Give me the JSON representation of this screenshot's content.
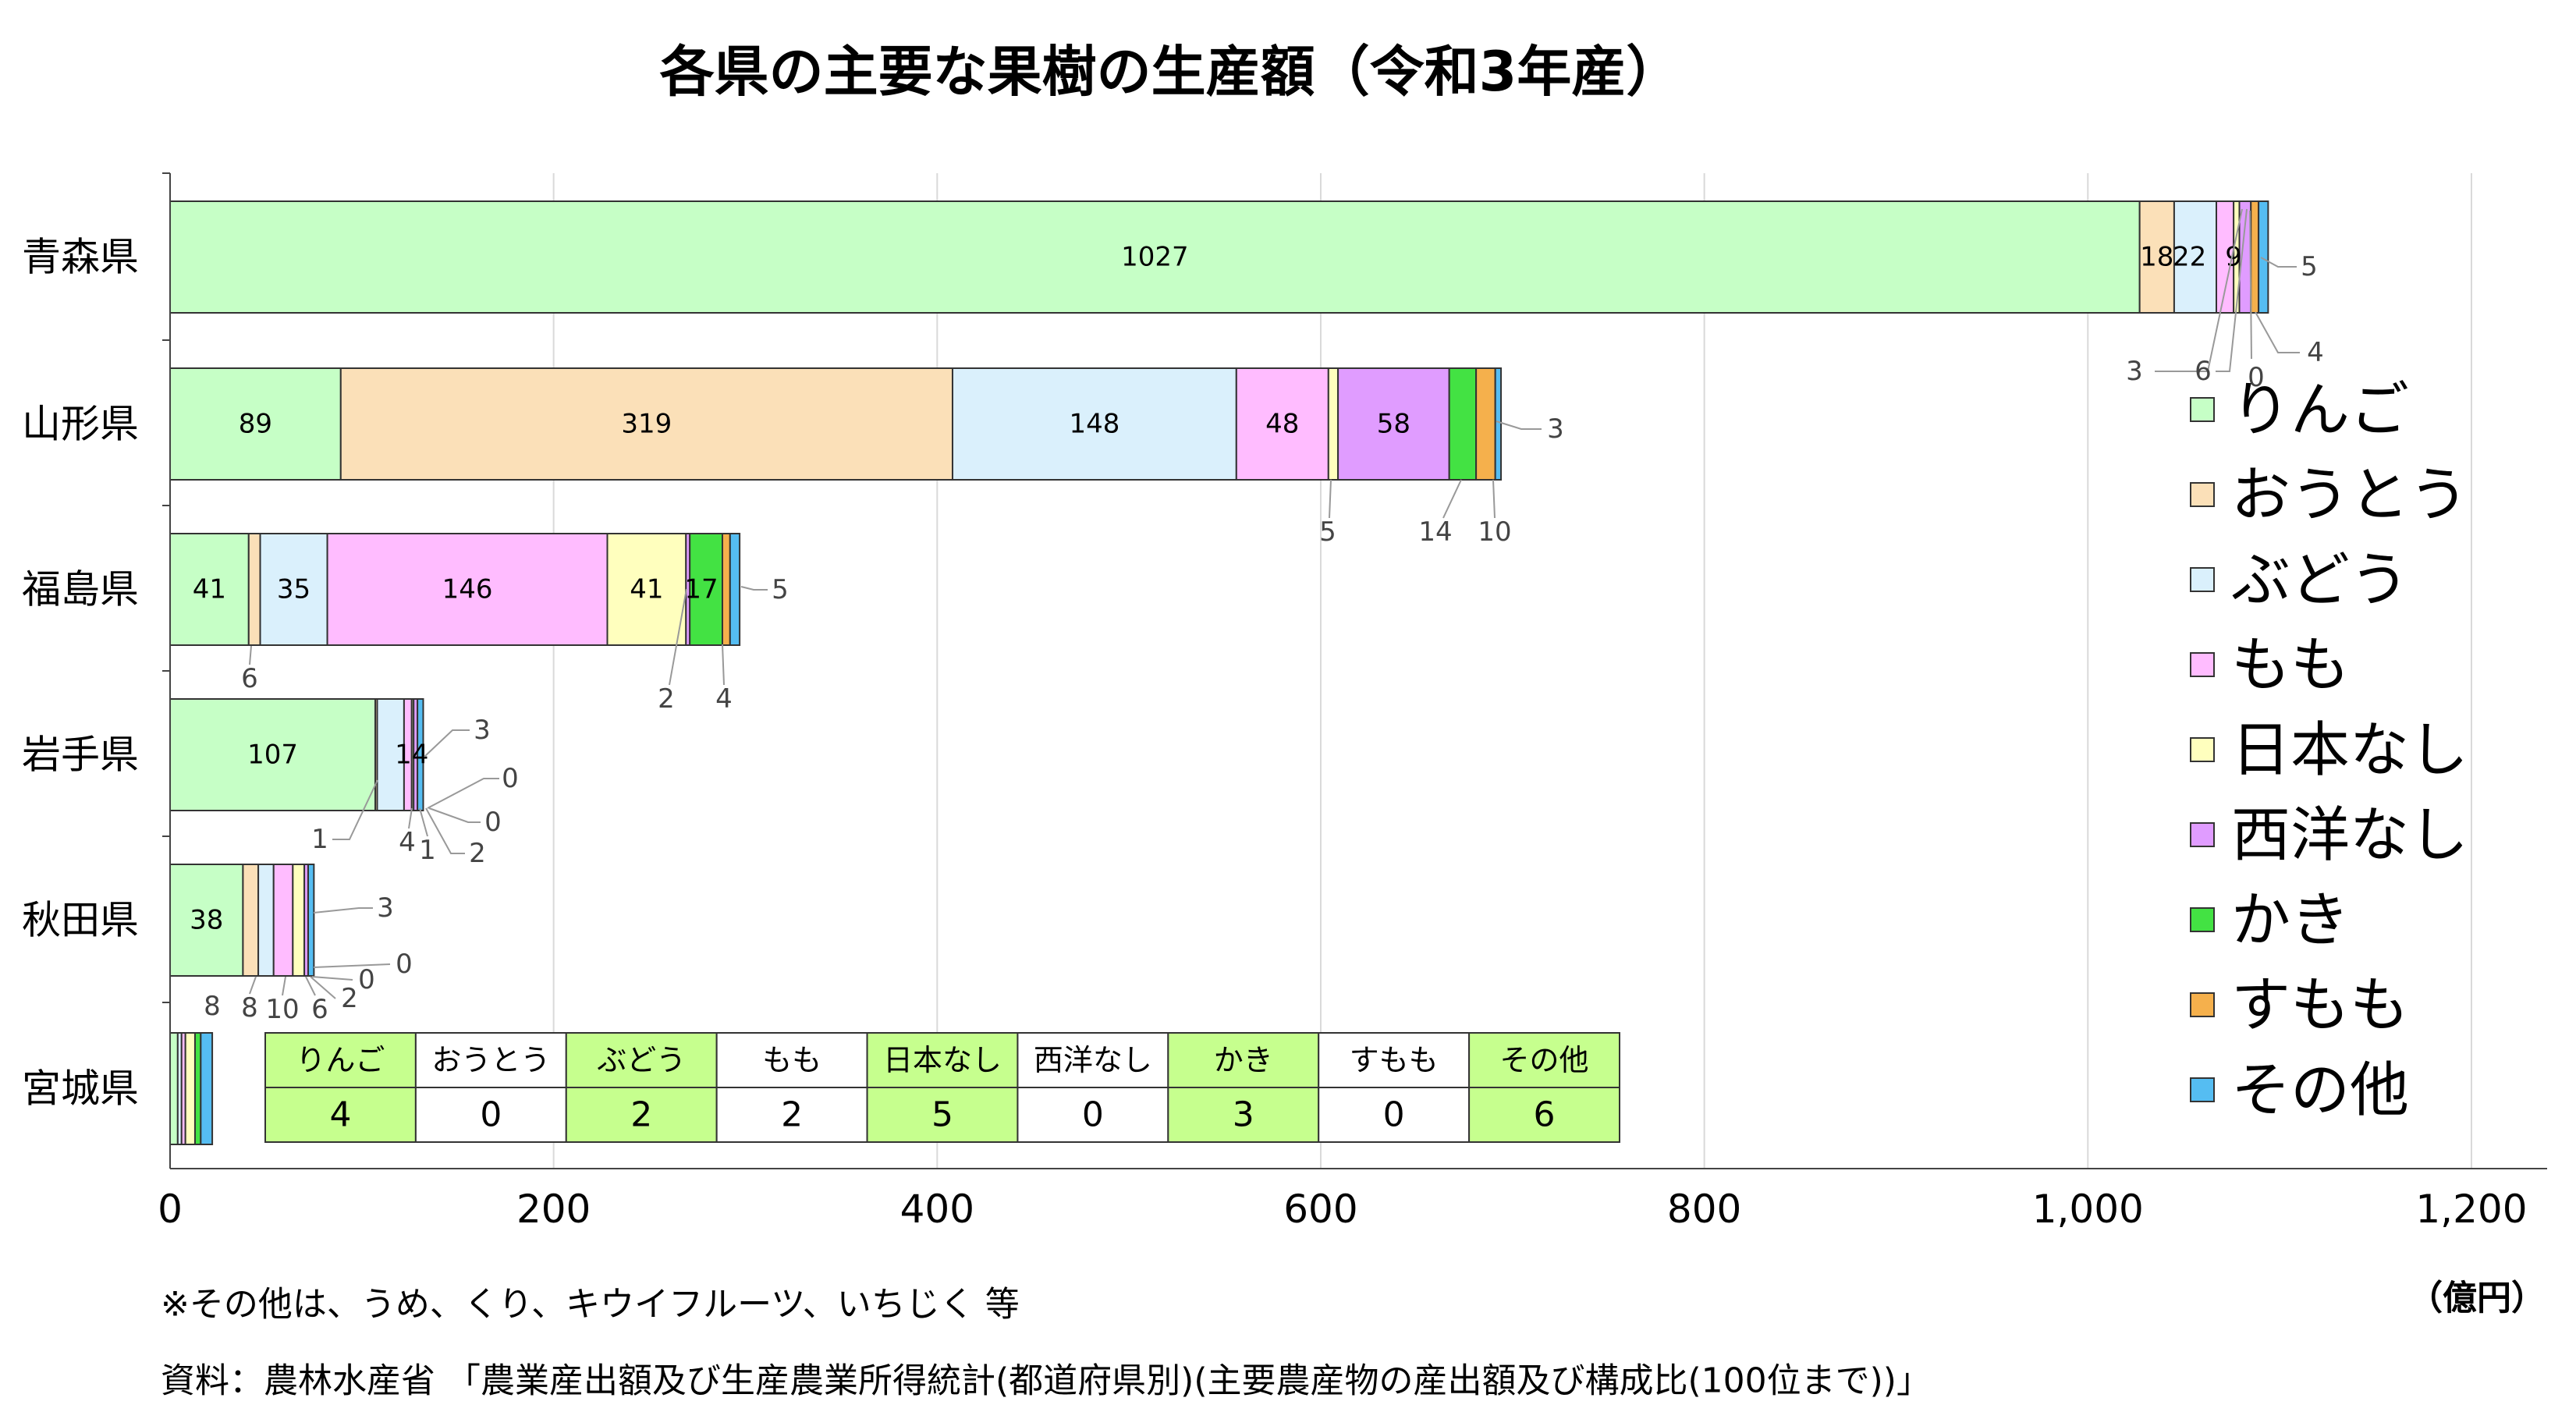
{
  "chart_data": {
    "type": "bar",
    "orientation": "horizontal",
    "stacked": true,
    "title": "各県の主要な果樹の生産額（令和3年産）",
    "unit_label": "（億円）",
    "categories": [
      "青森県",
      "山形県",
      "福島県",
      "岩手県",
      "秋田県",
      "宮城県"
    ],
    "series": [
      {
        "name": "りんご",
        "color": "#c6ffc6",
        "values": [
          1027,
          89,
          41,
          107,
          38,
          4
        ]
      },
      {
        "name": "おうとう",
        "color": "#fbe0b8",
        "values": [
          18,
          319,
          6,
          1,
          8,
          0
        ]
      },
      {
        "name": "ぶどう",
        "color": "#daf0fc",
        "values": [
          22,
          148,
          35,
          14,
          8,
          2
        ]
      },
      {
        "name": "もも",
        "color": "#ffbcff",
        "values": [
          9,
          48,
          146,
          4,
          10,
          2
        ]
      },
      {
        "name": "日本なし",
        "color": "#ffffbe",
        "values": [
          3,
          5,
          41,
          1,
          6,
          5
        ]
      },
      {
        "name": "西洋なし",
        "color": "#e09cff",
        "values": [
          6,
          58,
          2,
          2,
          2,
          0
        ]
      },
      {
        "name": "かき",
        "color": "#43e243",
        "values": [
          0,
          14,
          17,
          0,
          0,
          3
        ]
      },
      {
        "name": "すもも",
        "color": "#f5b04c",
        "values": [
          4,
          10,
          4,
          0,
          0,
          0
        ]
      },
      {
        "name": "その他",
        "color": "#55bdf2",
        "values": [
          5,
          3,
          5,
          3,
          3,
          6
        ]
      }
    ],
    "xlim": [
      0,
      1200
    ],
    "xticks": [
      "0",
      "200",
      "400",
      "600",
      "800",
      "1,000",
      "1,200"
    ],
    "grid": true,
    "legend_position": "right",
    "inset_table": {
      "headers": [
        "りんご",
        "おうとう",
        "ぶどう",
        "もも",
        "日本なし",
        "西洋なし",
        "かき",
        "すもも",
        "その他"
      ],
      "values": [
        "4",
        "0",
        "2",
        "2",
        "5",
        "0",
        "3",
        "0",
        "6"
      ]
    },
    "notes": [
      "※その他は、うめ、くり、キウイフルーツ、いちじく 等",
      "資料：農林水産省 「農業産出額及び生産農業所得統計(都道府県別)(主要農産物の産出額及び構成比(100位まで))」"
    ]
  }
}
